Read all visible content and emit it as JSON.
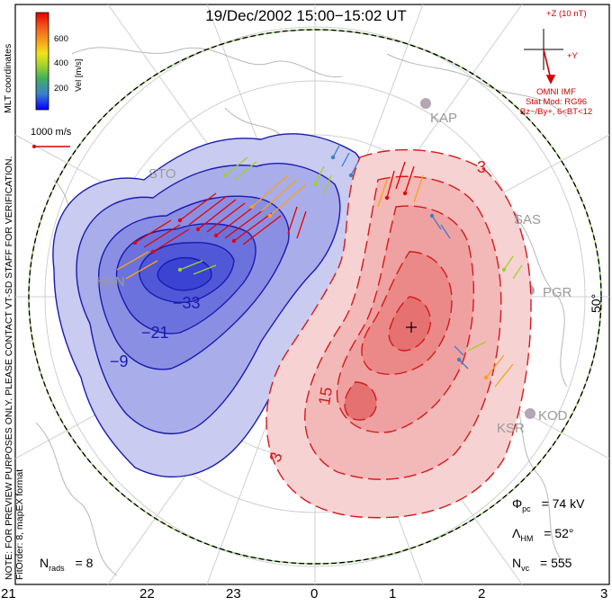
{
  "title": "19/Dec/2002 15:00−15:02 UT",
  "vertical_note": {
    "line1": "NOTE: FOR PREVIEW PURPOSES ONLY. PLEASE CONTACT VT-SD STAFF FOR VERIFICATION.",
    "line2": "FitOrder: 8, mapEX format"
  },
  "coordinates_label": "MLT coordinates",
  "colorbar": {
    "unit_label": "Vel [m/s]",
    "ticks": [
      "600",
      "400",
      "200"
    ],
    "colors": [
      "#0000ff",
      "#3a7fd0",
      "#3fae5e",
      "#9fd12a",
      "#f2e21a",
      "#f7a21c",
      "#f25a1c",
      "#e60000"
    ]
  },
  "scale_vector": {
    "label": "1000 m/s",
    "color": "#d40000"
  },
  "imf": {
    "z_label": "+Z (10 nT)",
    "y_label": "+Y",
    "source_label": "OMNI IMF",
    "model_label": "Stat Mod: RG96",
    "condition_label": "Bz−/By+, 6<BT<12",
    "color": "#d40000"
  },
  "mlt_ticks": [
    "21",
    "22",
    "23",
    "0",
    "1",
    "2",
    "3"
  ],
  "latitude_label": "50°",
  "stations": [
    "STO",
    "KAP",
    "SAS",
    "PGR",
    "KOD",
    "HAN"
  ],
  "station_short": [
    "KSR"
  ],
  "contours": {
    "negative_labels": [
      "−9",
      "−21",
      "−33"
    ],
    "positive_labels": [
      "3",
      "15",
      "3"
    ],
    "negative_color": "#1a1ab0",
    "positive_color": "#d41a1a"
  },
  "stats": {
    "phi_pc": {
      "symbol": "Φ",
      "subscript": "pc",
      "value": "= 74 kV"
    },
    "lambda_hm": {
      "symbol": "Λ",
      "subscript": "HM",
      "value": "= 52°"
    },
    "n_vc": {
      "symbol": "N",
      "subscript": "vc",
      "value": "= 555"
    },
    "n_rads": {
      "symbol": "N",
      "subscript": "rads",
      "value": "= 8"
    }
  }
}
